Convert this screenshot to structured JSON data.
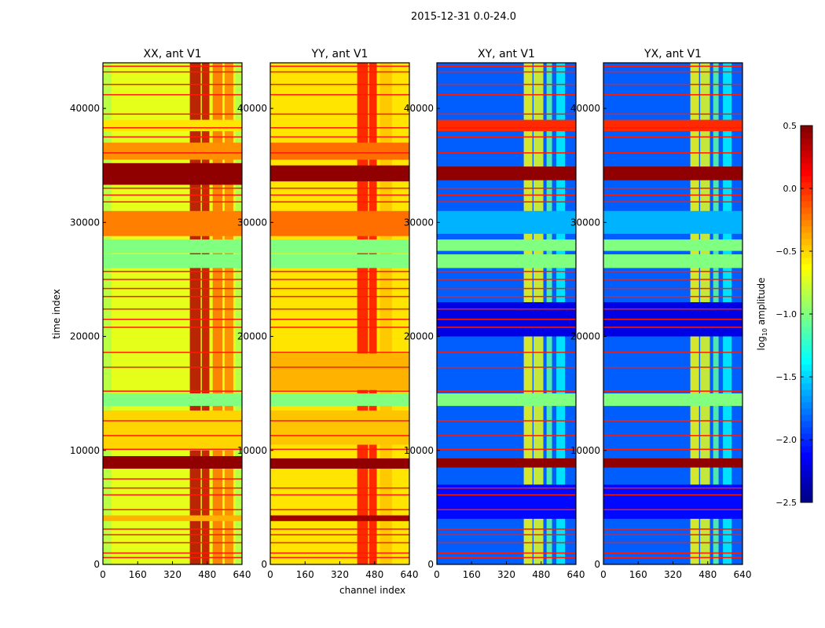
{
  "chart_data": {
    "type": "heatmap",
    "title": "2015-12-31 0.0-24.0",
    "xlabel": "channel index",
    "ylabel": "time index",
    "xlim": [
      0,
      640
    ],
    "ylim": [
      0,
      44000
    ],
    "xticks": [
      0,
      160,
      320,
      480,
      640
    ],
    "yticks": [
      0,
      10000,
      20000,
      30000,
      40000
    ],
    "colorbar": {
      "label": "log10 amplitude",
      "label_main": "log",
      "label_sub": "10",
      "label_rest": " amplitude",
      "range": [
        -2.5,
        0.5
      ],
      "ticks": [
        0.5,
        0.0,
        -0.5,
        -1.0,
        -1.5,
        -2.0,
        -2.5
      ],
      "tick_labels": [
        "0.5",
        "0.0",
        "−0.5",
        "−1.0",
        "−1.5",
        "−2.0",
        "−2.5"
      ],
      "colormap": "jet"
    },
    "panels": [
      {
        "title": "XX, ant V1",
        "base": -0.7,
        "columns": [
          [
            400,
            450,
            0.35
          ],
          [
            455,
            490,
            0.3
          ],
          [
            505,
            550,
            -0.2
          ],
          [
            560,
            600,
            -0.25
          ],
          [
            0,
            40,
            -0.85
          ],
          [
            610,
            640,
            -0.85
          ]
        ],
        "bands": [
          [
            33300,
            35200,
            0.45
          ],
          [
            8400,
            9500,
            0.45
          ],
          [
            26000,
            27200,
            -1.0
          ],
          [
            27300,
            28500,
            -1.0
          ],
          [
            13900,
            15000,
            -1.0
          ],
          [
            28800,
            31000,
            -0.25
          ],
          [
            35500,
            37000,
            -0.3
          ],
          [
            10000,
            13500,
            -0.5
          ],
          [
            3800,
            4300,
            -0.4
          ],
          [
            38000,
            39000,
            -0.55
          ]
        ],
        "lines": [
          600,
          1000,
          1900,
          2600,
          3100,
          4800,
          6100,
          6700,
          7500,
          10100,
          11300,
          12600,
          15200,
          17300,
          18600,
          20800,
          21500,
          22400,
          23500,
          24200,
          25000,
          25700,
          31800,
          32400,
          33000,
          36100,
          37500,
          38300,
          39500,
          41200,
          42100,
          43200,
          43700
        ]
      },
      {
        "title": "YY, ant V1",
        "base": -0.55,
        "columns": [
          [
            400,
            450,
            0.1
          ],
          [
            455,
            490,
            0.1
          ],
          [
            505,
            560,
            -0.45
          ]
        ],
        "bands": [
          [
            33600,
            35000,
            0.45
          ],
          [
            8400,
            9300,
            0.45
          ],
          [
            3800,
            4300,
            0.4
          ],
          [
            26000,
            27200,
            -1.0
          ],
          [
            27300,
            28500,
            -1.0
          ],
          [
            13900,
            15000,
            -1.0
          ],
          [
            28800,
            31000,
            -0.2
          ],
          [
            35500,
            37000,
            -0.2
          ],
          [
            10500,
            13500,
            -0.45
          ],
          [
            15300,
            18500,
            -0.4
          ]
        ],
        "lines": [
          600,
          1000,
          1900,
          2600,
          3100,
          4800,
          6100,
          6700,
          10100,
          11300,
          12600,
          15200,
          17300,
          18600,
          20800,
          21500,
          22400,
          23500,
          24200,
          25000,
          25700,
          31800,
          32400,
          33000,
          36100,
          37500,
          38300,
          39500,
          41200,
          42100,
          43200,
          43700
        ]
      },
      {
        "title": "XY, ant V1",
        "base": -1.85,
        "columns": [
          [
            400,
            440,
            -0.65
          ],
          [
            445,
            490,
            -0.7
          ],
          [
            505,
            530,
            -1.1
          ],
          [
            550,
            590,
            -1.4
          ]
        ],
        "bands": [
          [
            33700,
            34900,
            0.45
          ],
          [
            8500,
            9300,
            0.45
          ],
          [
            26000,
            27200,
            -1.0
          ],
          [
            27500,
            28500,
            -1.0
          ],
          [
            13900,
            15000,
            -1.0
          ],
          [
            38000,
            39000,
            0.0
          ],
          [
            29000,
            31000,
            -1.6
          ],
          [
            20000,
            23000,
            -2.2
          ],
          [
            4000,
            7000,
            -2.1
          ]
        ],
        "lines": [
          600,
          1000,
          1900,
          2600,
          3100,
          4800,
          6100,
          6700,
          10100,
          11300,
          12600,
          15200,
          17300,
          18600,
          20800,
          21500,
          22400,
          23500,
          24200,
          25000,
          25700,
          31800,
          32400,
          33000,
          36100,
          37500,
          38300,
          39500,
          41200,
          42100,
          43200,
          43700
        ]
      },
      {
        "title": "YX, ant V1",
        "base": -1.85,
        "columns": [
          [
            400,
            440,
            -0.65
          ],
          [
            445,
            490,
            -0.7
          ],
          [
            505,
            530,
            -1.1
          ],
          [
            550,
            590,
            -1.4
          ]
        ],
        "bands": [
          [
            33700,
            34900,
            0.45
          ],
          [
            8500,
            9300,
            0.45
          ],
          [
            26000,
            27200,
            -1.0
          ],
          [
            27500,
            28500,
            -1.0
          ],
          [
            13900,
            15000,
            -1.0
          ],
          [
            38000,
            39000,
            0.0
          ],
          [
            29000,
            31000,
            -1.6
          ],
          [
            20000,
            23000,
            -2.2
          ],
          [
            4000,
            7000,
            -2.1
          ]
        ],
        "lines": [
          600,
          1000,
          1900,
          2600,
          3100,
          4800,
          6100,
          6700,
          10100,
          11300,
          12600,
          15200,
          17300,
          18600,
          20800,
          21500,
          22400,
          23500,
          24200,
          25000,
          25700,
          31800,
          32400,
          33000,
          36100,
          37500,
          38300,
          39500,
          41200,
          42100,
          43200,
          43700
        ]
      }
    ]
  }
}
